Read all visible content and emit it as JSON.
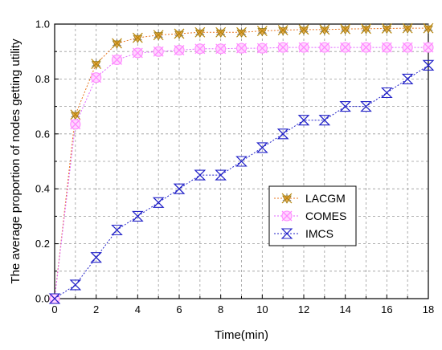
{
  "chart_data": {
    "type": "line",
    "title": "",
    "xlabel": "Time(min)",
    "ylabel": "The average proportion of nodes getting utility",
    "xlim": [
      0,
      18
    ],
    "ylim": [
      0,
      1.0
    ],
    "x_ticks": [
      "0",
      "2",
      "4",
      "6",
      "8",
      "10",
      "12",
      "14",
      "16",
      "18"
    ],
    "y_ticks": [
      "0.0",
      "0.2",
      "0.4",
      "0.6",
      "0.8",
      "1.0"
    ],
    "grid": true,
    "legend_position": "center-right",
    "x": [
      0,
      1,
      2,
      3,
      4,
      5,
      6,
      7,
      8,
      9,
      10,
      11,
      12,
      13,
      14,
      15,
      16,
      17,
      18
    ],
    "series": [
      {
        "name": "LACGM",
        "color": "#e87722",
        "marker_color": "#b8860b",
        "marker": "asterisk",
        "values": [
          0.0,
          0.67,
          0.855,
          0.93,
          0.95,
          0.96,
          0.965,
          0.97,
          0.97,
          0.97,
          0.975,
          0.978,
          0.98,
          0.98,
          0.982,
          0.983,
          0.984,
          0.985,
          0.985
        ]
      },
      {
        "name": "COMES",
        "color": "#e066ff",
        "marker_color": "#ff88ff",
        "marker": "cross-circle",
        "values": [
          0.0,
          0.635,
          0.805,
          0.87,
          0.895,
          0.9,
          0.905,
          0.91,
          0.91,
          0.912,
          0.912,
          0.915,
          0.915,
          0.915,
          0.915,
          0.915,
          0.915,
          0.915,
          0.915
        ]
      },
      {
        "name": "IMCS",
        "color": "#2323c8",
        "marker_color": "#2323c8",
        "marker": "bowtie",
        "values": [
          0.0,
          0.05,
          0.15,
          0.25,
          0.3,
          0.35,
          0.4,
          0.45,
          0.45,
          0.5,
          0.55,
          0.6,
          0.65,
          0.65,
          0.7,
          0.7,
          0.75,
          0.8,
          0.85
        ]
      }
    ]
  }
}
